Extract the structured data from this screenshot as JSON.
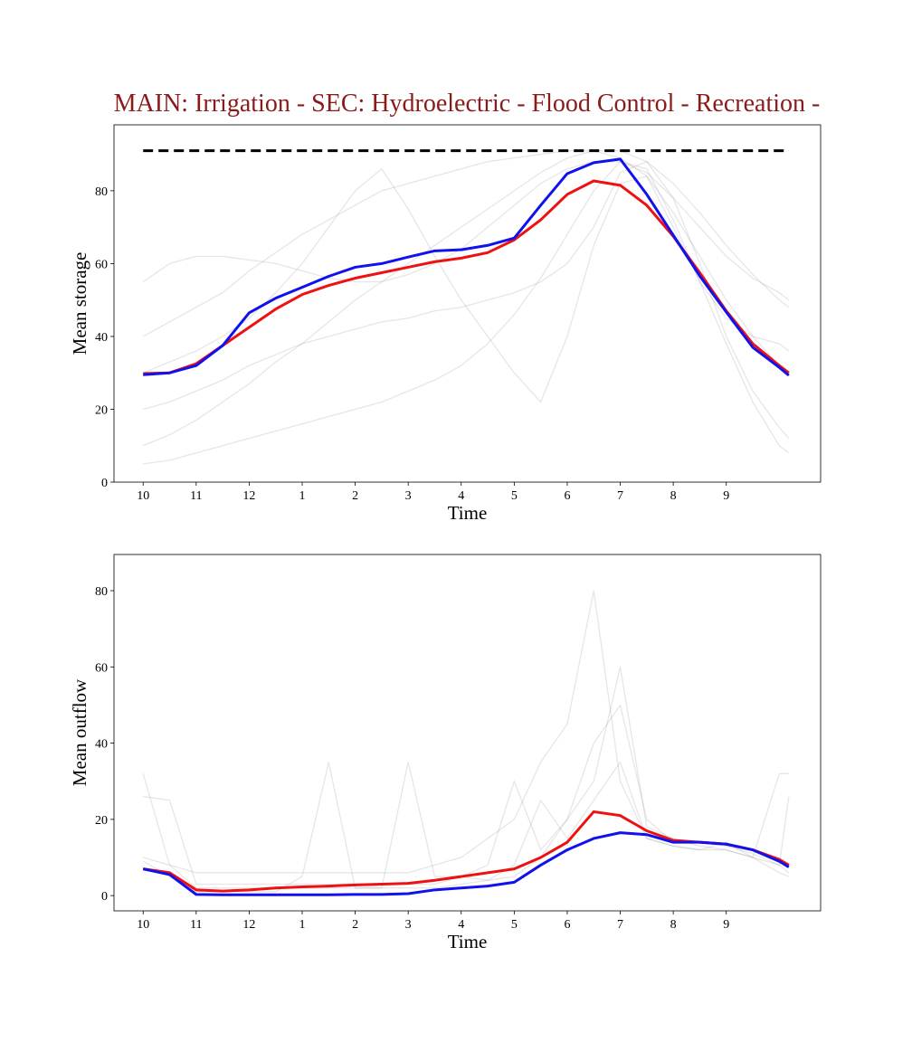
{
  "chart_data": [
    {
      "type": "line",
      "title": "MAIN: Irrigation - SEC: Hydroelectric - Flood Control - Recreation -",
      "x_label": "Time",
      "y_label": "Mean storage",
      "x": [
        0,
        0.5,
        1,
        1.5,
        2,
        2.5,
        3,
        3.5,
        4,
        4.5,
        5,
        5.5,
        6,
        6.5,
        7,
        7.5,
        8,
        8.5,
        9,
        9.5,
        10,
        10.5,
        11,
        11.5,
        12,
        12.18
      ],
      "xlim": [
        -0.55,
        12.78
      ],
      "xticks": [
        {
          "value": 0,
          "label": "10"
        },
        {
          "value": 1,
          "label": "11"
        },
        {
          "value": 2,
          "label": "12"
        },
        {
          "value": 3,
          "label": "1"
        },
        {
          "value": 4,
          "label": "2"
        },
        {
          "value": 5,
          "label": "3"
        },
        {
          "value": 6,
          "label": "4"
        },
        {
          "value": 7,
          "label": "5"
        },
        {
          "value": 8,
          "label": "6"
        },
        {
          "value": 9,
          "label": "7"
        },
        {
          "value": 10,
          "label": "8"
        },
        {
          "value": 11,
          "label": "9"
        }
      ],
      "ylim": [
        0,
        98.1
      ],
      "yticks": [
        0,
        20,
        40,
        60,
        80
      ],
      "series": [
        {
          "color": "#808080",
          "alpha": 0.2,
          "linewidth": 1.3,
          "values": [
            10,
            13,
            17,
            22,
            27,
            33,
            38,
            44,
            50,
            55,
            60,
            65,
            70,
            75,
            80,
            85,
            89,
            91,
            91,
            88,
            82,
            74,
            65,
            57,
            50,
            48
          ]
        },
        {
          "color": "#808080",
          "alpha": 0.2,
          "linewidth": 1.3,
          "values": [
            55,
            60,
            62,
            62,
            61,
            60,
            58,
            56,
            55,
            55,
            57,
            60,
            64,
            70,
            76,
            82,
            86,
            88,
            88,
            85,
            78,
            70,
            62,
            56,
            52,
            50
          ]
        },
        {
          "color": "#808080",
          "alpha": 0.2,
          "linewidth": 1.3,
          "values": [
            20,
            22,
            25,
            28,
            32,
            35,
            38,
            40,
            42,
            44,
            45,
            47,
            48,
            50,
            52,
            55,
            60,
            70,
            85,
            88,
            78,
            60,
            40,
            25,
            15,
            12
          ]
        },
        {
          "color": "#808080",
          "alpha": 0.2,
          "linewidth": 1.3,
          "values": [
            40,
            44,
            48,
            52,
            58,
            63,
            68,
            72,
            76,
            80,
            82,
            84,
            86,
            88,
            89,
            90,
            91,
            91,
            89,
            84,
            74,
            62,
            50,
            40,
            32,
            30
          ]
        },
        {
          "color": "#808080",
          "alpha": 0.2,
          "linewidth": 1.3,
          "values": [
            5,
            6,
            8,
            10,
            12,
            14,
            16,
            18,
            20,
            22,
            25,
            28,
            32,
            38,
            46,
            56,
            68,
            80,
            88,
            86,
            72,
            55,
            38,
            22,
            10,
            8
          ]
        },
        {
          "color": "#808080",
          "alpha": 0.2,
          "linewidth": 1.3,
          "values": [
            30,
            33,
            36,
            40,
            45,
            52,
            60,
            70,
            80,
            86,
            75,
            62,
            50,
            40,
            30,
            22,
            40,
            65,
            82,
            84,
            70,
            55,
            45,
            40,
            38,
            36
          ]
        },
        {
          "color": "#000000",
          "alpha": 1,
          "linewidth": 3,
          "dashed": true,
          "x": [
            0,
            12.18
          ],
          "values": [
            91,
            91
          ]
        },
        {
          "color": "#ee1111",
          "alpha": 1,
          "linewidth": 3,
          "values": [
            29.8,
            30,
            32.5,
            37.5,
            42.5,
            47.5,
            51.5,
            54,
            56,
            57.5,
            59,
            60.5,
            61.5,
            63,
            66.5,
            72,
            79,
            82.7,
            81.5,
            76,
            67.5,
            57.5,
            47,
            38,
            32,
            30
          ]
        },
        {
          "color": "#1111ee",
          "alpha": 1,
          "linewidth": 3,
          "values": [
            29.5,
            30,
            32,
            37.5,
            46.5,
            50.5,
            53.5,
            56.5,
            59,
            60,
            61.8,
            63.5,
            63.8,
            65,
            67,
            76,
            84.7,
            87.7,
            88.7,
            79,
            67.8,
            56.6,
            46.7,
            37,
            31.5,
            29.3
          ]
        }
      ]
    },
    {
      "type": "line",
      "x_label": "Time",
      "y_label": "Mean outflow",
      "x": [
        0,
        0.5,
        1,
        1.5,
        2,
        2.5,
        3,
        3.5,
        4,
        4.5,
        5,
        5.5,
        6,
        6.5,
        7,
        7.5,
        8,
        8.5,
        9,
        9.5,
        10,
        10.5,
        11,
        11.5,
        12,
        12.18
      ],
      "xlim": [
        -0.55,
        12.78
      ],
      "xticks": [
        {
          "value": 0,
          "label": "10"
        },
        {
          "value": 1,
          "label": "11"
        },
        {
          "value": 2,
          "label": "12"
        },
        {
          "value": 3,
          "label": "1"
        },
        {
          "value": 4,
          "label": "2"
        },
        {
          "value": 5,
          "label": "3"
        },
        {
          "value": 6,
          "label": "4"
        },
        {
          "value": 7,
          "label": "5"
        },
        {
          "value": 8,
          "label": "6"
        },
        {
          "value": 9,
          "label": "7"
        },
        {
          "value": 10,
          "label": "8"
        },
        {
          "value": 11,
          "label": "9"
        }
      ],
      "ylim": [
        -4,
        89.5
      ],
      "yticks": [
        0,
        20,
        40,
        60,
        80
      ],
      "series": [
        {
          "color": "#808080",
          "alpha": 0.2,
          "linewidth": 1.3,
          "values": [
            32,
            8,
            6,
            6,
            6,
            6,
            6,
            6,
            6,
            6,
            6,
            8,
            10,
            15,
            20,
            35,
            45,
            80,
            30,
            15,
            13,
            12,
            12,
            10,
            8,
            26
          ]
        },
        {
          "color": "#808080",
          "alpha": 0.2,
          "linewidth": 1.3,
          "values": [
            9,
            5,
            1,
            1,
            1,
            1,
            5,
            35,
            2,
            2,
            2,
            2,
            3,
            4,
            5,
            10,
            20,
            40,
            50,
            20,
            14,
            14,
            13,
            11,
            8,
            6
          ]
        },
        {
          "color": "#808080",
          "alpha": 0.2,
          "linewidth": 1.3,
          "values": [
            26,
            25,
            3,
            3,
            3,
            3,
            3,
            3,
            3,
            3,
            3,
            3,
            5,
            8,
            30,
            12,
            20,
            30,
            60,
            18,
            15,
            13,
            12,
            10,
            6,
            5
          ]
        },
        {
          "color": "#808080",
          "alpha": 0.2,
          "linewidth": 1.3,
          "values": [
            10,
            8,
            2,
            2,
            2,
            2,
            2,
            2,
            2,
            2,
            35,
            5,
            5,
            4,
            8,
            25,
            15,
            25,
            35,
            15,
            13,
            12,
            14,
            10,
            32,
            32
          ]
        },
        {
          "color": "#ee1111",
          "alpha": 1,
          "linewidth": 3,
          "values": [
            7,
            6,
            1.5,
            1.2,
            1.5,
            2,
            2.3,
            2.5,
            2.8,
            3,
            3.2,
            4,
            5,
            6,
            7,
            10,
            14,
            22,
            21,
            17,
            14.5,
            14,
            13.5,
            12,
            9.5,
            8
          ]
        },
        {
          "color": "#1111ee",
          "alpha": 1,
          "linewidth": 3,
          "values": [
            7,
            5.5,
            0.3,
            0.2,
            0.2,
            0.2,
            0.2,
            0.2,
            0.3,
            0.3,
            0.5,
            1.5,
            2,
            2.5,
            3.5,
            8,
            12,
            15,
            16.5,
            16,
            14,
            14,
            13.5,
            12,
            9,
            7.5
          ]
        }
      ]
    }
  ]
}
